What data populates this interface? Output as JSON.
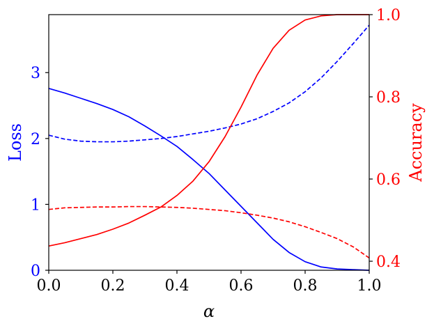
{
  "chart_data": {
    "type": "line",
    "xlabel": "α",
    "ylabel_left": "Loss",
    "ylabel_right": "Accuracy",
    "xlim": [
      0.0,
      1.0
    ],
    "ylim_left": [
      0,
      3.88
    ],
    "ylim_right": [
      0.378,
      1.0
    ],
    "x_ticks": [
      0.0,
      0.2,
      0.4,
      0.6,
      0.8,
      1.0
    ],
    "x_tick_labels": [
      "0.0",
      "0.2",
      "0.4",
      "0.6",
      "0.8",
      "1.0"
    ],
    "y_left_ticks": [
      0,
      1,
      2,
      3
    ],
    "y_left_tick_labels": [
      "0",
      "1",
      "2",
      "3"
    ],
    "y_right_ticks": [
      0.4,
      0.6,
      0.8,
      1.0
    ],
    "y_right_tick_labels": [
      "0.4",
      "0.6",
      "0.8",
      "1.0"
    ],
    "grid": false,
    "legend": "none",
    "colors": {
      "left_axis": "#0000ff",
      "right_axis": "#ff0000"
    },
    "series": [
      {
        "axis": "left",
        "color": "#0000ff",
        "style": "solid",
        "x": [
          0.0,
          0.05,
          0.1,
          0.15,
          0.2,
          0.25,
          0.3,
          0.35,
          0.4,
          0.45,
          0.5,
          0.55,
          0.6,
          0.65,
          0.7,
          0.75,
          0.8,
          0.85,
          0.9,
          0.95,
          1.0
        ],
        "y": [
          2.76,
          2.69,
          2.61,
          2.53,
          2.44,
          2.33,
          2.19,
          2.04,
          1.88,
          1.68,
          1.47,
          1.22,
          0.97,
          0.72,
          0.47,
          0.27,
          0.13,
          0.05,
          0.02,
          0.01,
          0.0
        ]
      },
      {
        "axis": "left",
        "color": "#0000ff",
        "style": "dashed",
        "x": [
          0.0,
          0.05,
          0.1,
          0.15,
          0.2,
          0.25,
          0.3,
          0.35,
          0.4,
          0.45,
          0.5,
          0.55,
          0.6,
          0.65,
          0.7,
          0.75,
          0.8,
          0.85,
          0.9,
          0.95,
          1.0
        ],
        "y": [
          2.05,
          1.99,
          1.96,
          1.95,
          1.95,
          1.96,
          1.98,
          2.0,
          2.03,
          2.07,
          2.11,
          2.16,
          2.22,
          2.3,
          2.41,
          2.54,
          2.71,
          2.92,
          3.17,
          3.44,
          3.72
        ]
      },
      {
        "axis": "right",
        "color": "#ff0000",
        "style": "solid",
        "x": [
          0.0,
          0.05,
          0.1,
          0.15,
          0.2,
          0.25,
          0.3,
          0.35,
          0.4,
          0.45,
          0.5,
          0.55,
          0.6,
          0.65,
          0.7,
          0.75,
          0.8,
          0.85,
          0.9,
          0.95,
          1.0
        ],
        "y": [
          0.437,
          0.445,
          0.455,
          0.465,
          0.478,
          0.493,
          0.512,
          0.532,
          0.56,
          0.595,
          0.642,
          0.703,
          0.775,
          0.853,
          0.918,
          0.962,
          0.987,
          0.997,
          1.0,
          1.0,
          1.0
        ]
      },
      {
        "axis": "right",
        "color": "#ff0000",
        "style": "dashed",
        "x": [
          0.0,
          0.05,
          0.1,
          0.15,
          0.2,
          0.25,
          0.3,
          0.35,
          0.4,
          0.45,
          0.5,
          0.55,
          0.6,
          0.65,
          0.7,
          0.75,
          0.8,
          0.85,
          0.9,
          0.95,
          1.0
        ],
        "y": [
          0.526,
          0.53,
          0.531,
          0.532,
          0.532,
          0.533,
          0.533,
          0.532,
          0.531,
          0.529,
          0.526,
          0.523,
          0.518,
          0.512,
          0.505,
          0.496,
          0.484,
          0.47,
          0.455,
          0.435,
          0.408
        ]
      }
    ]
  }
}
